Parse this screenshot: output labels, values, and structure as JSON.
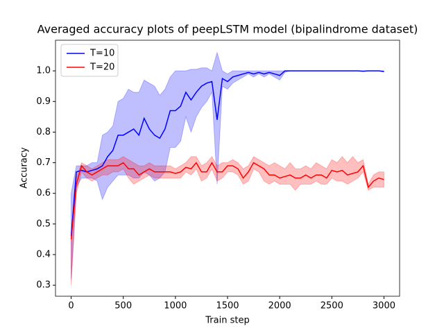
{
  "chart_data": {
    "type": "line",
    "title": "Averaged accuracy plots of peepLSTM model (bipalindrome dataset)",
    "x_label": "Train step",
    "y_label": "Accuracy",
    "x": [
      0,
      50,
      100,
      150,
      200,
      250,
      300,
      350,
      400,
      450,
      500,
      550,
      600,
      650,
      700,
      750,
      800,
      850,
      900,
      950,
      1000,
      1050,
      1100,
      1150,
      1200,
      1250,
      1300,
      1350,
      1400,
      1450,
      1500,
      1550,
      1600,
      1650,
      1700,
      1750,
      1800,
      1850,
      1900,
      1950,
      2000,
      2050,
      2100,
      2150,
      2200,
      2250,
      2300,
      2350,
      2400,
      2450,
      2500,
      2550,
      2600,
      2650,
      2700,
      2750,
      2800,
      2850,
      2900,
      2950,
      3000
    ],
    "series": [
      {
        "name": "T=10",
        "color": "#0000ff",
        "values": [
          0.46,
          0.67,
          0.675,
          0.67,
          0.675,
          0.68,
          0.69,
          0.72,
          0.74,
          0.79,
          0.79,
          0.8,
          0.81,
          0.79,
          0.845,
          0.81,
          0.79,
          0.78,
          0.81,
          0.87,
          0.87,
          0.885,
          0.93,
          0.905,
          0.93,
          0.95,
          0.96,
          0.965,
          0.84,
          0.975,
          0.965,
          0.98,
          0.985,
          0.99,
          0.995,
          0.99,
          0.995,
          0.99,
          0.995,
          0.99,
          0.985,
          1.0,
          1.0,
          1.0,
          1.0,
          1.0,
          1.0,
          1.0,
          1.0,
          1.0,
          1.0,
          1.0,
          1.0,
          1.0,
          1.0,
          1.0,
          0.999,
          1.0,
          1.0,
          1.0,
          0.998
        ],
        "upper": [
          0.6,
          0.69,
          0.69,
          0.69,
          0.7,
          0.7,
          0.79,
          0.8,
          0.82,
          0.9,
          0.91,
          0.94,
          0.93,
          0.93,
          0.97,
          0.96,
          0.95,
          0.92,
          0.94,
          0.98,
          1.0,
          1.0,
          1.0,
          1.005,
          1.005,
          1.01,
          1.01,
          1.0,
          1.06,
          1.0,
          0.99,
          1.0,
          1.0,
          1.0,
          1.0,
          1.0,
          1.0,
          1.0,
          1.0,
          1.0,
          1.0,
          1.0,
          1.0,
          1.0,
          1.0,
          1.0,
          1.0,
          1.0,
          1.0,
          1.0,
          1.0,
          1.0,
          1.0,
          1.0,
          1.0,
          1.0,
          1.0,
          1.0,
          1.0,
          1.0,
          1.0
        ],
        "lower": [
          0.32,
          0.62,
          0.65,
          0.65,
          0.65,
          0.64,
          0.58,
          0.62,
          0.64,
          0.66,
          0.66,
          0.66,
          0.65,
          0.65,
          0.67,
          0.66,
          0.64,
          0.65,
          0.67,
          0.75,
          0.75,
          0.77,
          0.85,
          0.8,
          0.85,
          0.88,
          0.9,
          0.93,
          0.63,
          0.95,
          0.94,
          0.96,
          0.97,
          0.98,
          0.99,
          0.98,
          0.99,
          0.98,
          0.99,
          0.98,
          0.97,
          0.995,
          1.0,
          1.0,
          1.0,
          1.0,
          1.0,
          1.0,
          1.0,
          1.0,
          1.0,
          1.0,
          1.0,
          1.0,
          1.0,
          1.0,
          0.998,
          1.0,
          1.0,
          1.0,
          0.996
        ]
      },
      {
        "name": "T=20",
        "color": "#ff0000",
        "values": [
          0.45,
          0.63,
          0.69,
          0.67,
          0.66,
          0.67,
          0.68,
          0.69,
          0.69,
          0.69,
          0.7,
          0.68,
          0.68,
          0.66,
          0.67,
          0.68,
          0.67,
          0.67,
          0.67,
          0.67,
          0.665,
          0.67,
          0.685,
          0.68,
          0.7,
          0.67,
          0.67,
          0.7,
          0.67,
          0.67,
          0.69,
          0.69,
          0.68,
          0.65,
          0.67,
          0.7,
          0.69,
          0.68,
          0.66,
          0.66,
          0.65,
          0.655,
          0.66,
          0.65,
          0.65,
          0.66,
          0.65,
          0.66,
          0.66,
          0.65,
          0.675,
          0.67,
          0.675,
          0.66,
          0.665,
          0.67,
          0.69,
          0.62,
          0.64,
          0.65,
          0.645
        ],
        "upper": [
          0.47,
          0.65,
          0.7,
          0.69,
          0.68,
          0.69,
          0.7,
          0.71,
          0.71,
          0.71,
          0.72,
          0.71,
          0.7,
          0.69,
          0.69,
          0.7,
          0.69,
          0.69,
          0.69,
          0.69,
          0.68,
          0.69,
          0.7,
          0.72,
          0.72,
          0.69,
          0.7,
          0.72,
          0.69,
          0.7,
          0.7,
          0.71,
          0.7,
          0.68,
          0.69,
          0.72,
          0.71,
          0.7,
          0.69,
          0.7,
          0.69,
          0.68,
          0.7,
          0.68,
          0.68,
          0.69,
          0.68,
          0.7,
          0.69,
          0.68,
          0.71,
          0.7,
          0.72,
          0.7,
          0.72,
          0.7,
          0.71,
          0.63,
          0.66,
          0.67,
          0.67
        ],
        "lower": [
          0.3,
          0.6,
          0.67,
          0.65,
          0.64,
          0.65,
          0.66,
          0.66,
          0.67,
          0.67,
          0.68,
          0.65,
          0.63,
          0.64,
          0.65,
          0.66,
          0.65,
          0.65,
          0.65,
          0.65,
          0.65,
          0.65,
          0.67,
          0.66,
          0.68,
          0.64,
          0.65,
          0.68,
          0.64,
          0.65,
          0.67,
          0.67,
          0.66,
          0.63,
          0.64,
          0.68,
          0.67,
          0.64,
          0.63,
          0.64,
          0.63,
          0.63,
          0.63,
          0.61,
          0.63,
          0.63,
          0.63,
          0.64,
          0.63,
          0.63,
          0.65,
          0.64,
          0.64,
          0.63,
          0.64,
          0.65,
          0.67,
          0.61,
          0.62,
          0.62,
          0.62
        ]
      }
    ],
    "xlim": [
      -150,
      3150
    ],
    "ylim": [
      0.264,
      1.1
    ],
    "xticks": [
      0,
      500,
      1000,
      1500,
      2000,
      2500,
      3000
    ],
    "yticks": [
      0.3,
      0.4,
      0.5,
      0.6,
      0.7,
      0.8,
      0.9,
      {
        "value": 1,
        "label": "1.0"
      }
    ],
    "legend": "upper left",
    "grid": false
  }
}
